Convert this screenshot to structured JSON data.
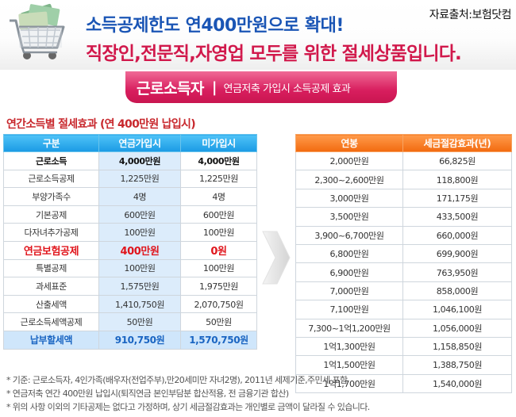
{
  "header": {
    "source": "자료출처:보험닷컴",
    "headline_1": "소득공제한도 연400만원으로 확대!",
    "headline_2": "직장인,전문직,자영업 모두를 위한 절세상품입니다."
  },
  "banner": {
    "title": "근로소득자",
    "separator": "|",
    "subtitle": "연금저축 가입시 소득공제 효과"
  },
  "section_title": "연간소득별 절세효과 (연 400만원 납입시)",
  "left_table": {
    "headers": [
      "구분",
      "연금가입시",
      "미가입시"
    ],
    "rows": [
      [
        "근로소득",
        "4,000만원",
        "4,000만원"
      ],
      [
        "근로소득공제",
        "1,225만원",
        "1,225만원"
      ],
      [
        "부양가족수",
        "4명",
        "4명"
      ],
      [
        "기본공제",
        "600만원",
        "600만원"
      ],
      [
        "다자녀추가공제",
        "100만원",
        "100만원"
      ],
      [
        "연금보험공제",
        "400만원",
        "0원"
      ],
      [
        "특별공제",
        "100만원",
        "100만원"
      ],
      [
        "과세표준",
        "1,575만원",
        "1,975만원"
      ],
      [
        "산출세액",
        "1,410,750원",
        "2,070,750원"
      ],
      [
        "근로소득세액공제",
        "50만원",
        "50만원"
      ],
      [
        "납부할세액",
        "910,750원",
        "1,570,750원"
      ]
    ]
  },
  "right_table": {
    "headers": [
      "연봉",
      "세금절감효과(년)"
    ],
    "rows": [
      [
        "2,000만원",
        "66,825원"
      ],
      [
        "2,300~2,600만원",
        "118,800원"
      ],
      [
        "3,000만원",
        "171,175원"
      ],
      [
        "3,500만원",
        "433,500원"
      ],
      [
        "3,900~6,700만원",
        "660,000원"
      ],
      [
        "6,800만원",
        "699,900원"
      ],
      [
        "6,900만원",
        "763,950원"
      ],
      [
        "7,000만원",
        "858,000원"
      ],
      [
        "7,100만원",
        "1,046,100원"
      ],
      [
        "7,300~1억1,200만원",
        "1,056,000원"
      ],
      [
        "1억1,300만원",
        "1,158,850원"
      ],
      [
        "1억1,500만원",
        "1,388,750원"
      ],
      [
        "1억1,700만원",
        "1,540,000원"
      ]
    ]
  },
  "notes": [
    "* 기준: 근로소득자, 4인가족(배우자(전업주부),만20세미만 자녀2명), 2011년 세제기준,주민세 포함",
    "* 연금저축 연간 400만원 납입시(퇴직연금 본인부담분 합산적용, 전 금융기관 합산)",
    "* 위의 사항 이외의 기타공제는 없다고 가정하며, 상기 세금절감효과는 개인별로 금액이 달라질 수 있습니다."
  ],
  "colors": {
    "headline_blue": "#1a55b5",
    "headline_red": "#d1184b",
    "banner_pink": "#d81e5e",
    "left_header_blue": "#1b9ae4",
    "right_header_orange": "#f26a0f",
    "highlight_red": "#e0151c"
  },
  "icons": {
    "header_image": "shopping-cart-with-money-icon",
    "arrow": "right-arrow-icon"
  }
}
